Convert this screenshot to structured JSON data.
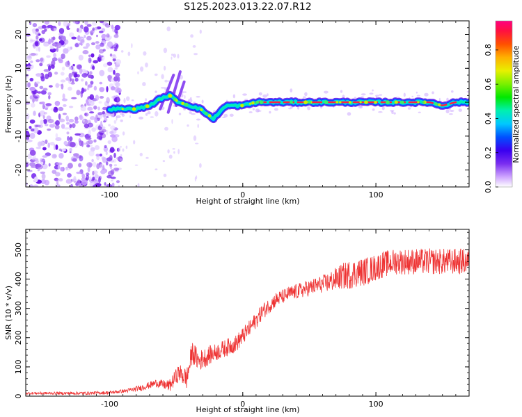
{
  "title": "S125.2023.013.22.07.R12",
  "spectrogram": {
    "xlabel": "Height of straight line (km)",
    "ylabel": "Frequency (Hz)",
    "xlim": [
      -163,
      170
    ],
    "ylim": [
      -25,
      24
    ],
    "xticks": [
      -100,
      0,
      100
    ],
    "yticks": [
      -20,
      -10,
      0,
      10,
      20
    ],
    "colorbar_label": "Normalized spectral amplitude",
    "colorbar_ticks": [
      "0.0",
      "0.2",
      "0.4",
      "0.6",
      "0.8"
    ],
    "colorbar_tick_values": [
      0.0,
      0.2,
      0.4,
      0.6,
      0.8
    ],
    "colorbar_range": [
      0.0,
      0.97
    ]
  },
  "chart_data": [
    {
      "type": "heatmap",
      "title": "S125.2023.013.22.07.R12",
      "xlabel": "Height of straight line (km)",
      "ylabel": "Frequency (Hz)",
      "xlim": [
        -163,
        170
      ],
      "ylim": [
        -25,
        24
      ],
      "colorbar_label": "Normalized spectral amplitude",
      "ridge": {
        "description": "dominant-frequency track",
        "x": [
          -100,
          -90,
          -80,
          -70,
          -62,
          -55,
          -48,
          -40,
          -32,
          -25,
          -22,
          -18,
          -12,
          -5,
          0,
          10,
          20,
          40,
          60,
          80,
          100,
          120,
          140,
          150,
          160,
          170
        ],
        "y": [
          -2,
          -2,
          -2,
          -1,
          1,
          2,
          0,
          -1,
          -2,
          -4,
          -5,
          -3,
          -1,
          -1,
          -1,
          0,
          0,
          0,
          0,
          0,
          0,
          0,
          0,
          -1,
          0,
          0
        ]
      },
      "noise_region_x": [
        -163,
        -100
      ]
    },
    {
      "type": "line",
      "xlabel": "Height of straight line (km)",
      "ylabel": "SNR (10 * v/v)",
      "xlim": [
        -163,
        170
      ],
      "ylim": [
        0,
        570
      ],
      "xticks": [
        -100,
        0,
        100
      ],
      "yticks": [
        0,
        100,
        200,
        300,
        400,
        500
      ],
      "series_color": "#ee3333",
      "envelope": {
        "x": [
          -163,
          -140,
          -120,
          -100,
          -85,
          -75,
          -65,
          -55,
          -48,
          -42,
          -38,
          -33,
          -25,
          -15,
          -5,
          5,
          15,
          25,
          35,
          50,
          65,
          75,
          85,
          95,
          105,
          115,
          125,
          140,
          155,
          170
        ],
        "y": [
          10,
          10,
          10,
          12,
          20,
          30,
          45,
          35,
          80,
          60,
          150,
          120,
          140,
          160,
          180,
          230,
          290,
          330,
          350,
          370,
          390,
          410,
          420,
          430,
          450,
          460,
          460,
          460,
          460,
          460
        ]
      },
      "noise_amplitude": {
        "x": [
          -163,
          -90,
          -60,
          -40,
          -20,
          0,
          30,
          60,
          80,
          110,
          170
        ],
        "y": [
          4,
          6,
          15,
          40,
          30,
          30,
          25,
          30,
          50,
          45,
          45
        ]
      }
    }
  ],
  "snr_plot": {
    "xlabel": "Height of straight line (km)",
    "ylabel": "SNR (10 * v/v)",
    "xticks": [
      -100,
      0,
      100
    ],
    "yticks": [
      0,
      100,
      200,
      300,
      400,
      500
    ]
  },
  "colors": {
    "snr_line": "#ee3333",
    "noise_speckle": "#7733ee"
  }
}
